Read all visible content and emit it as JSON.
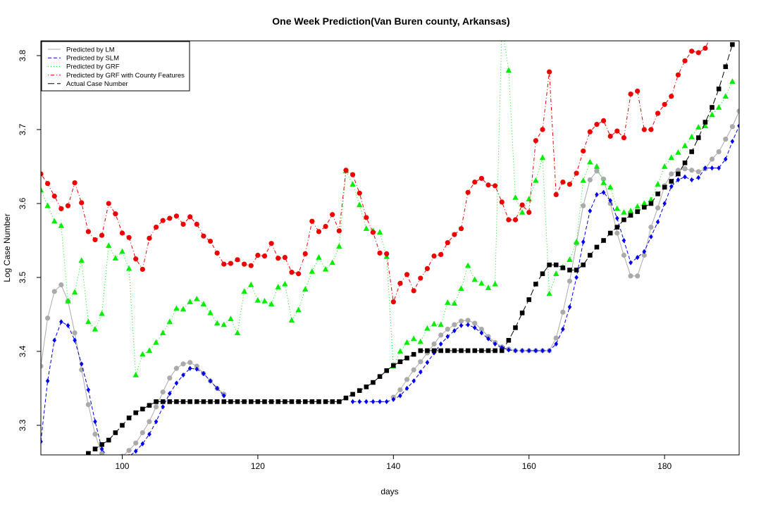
{
  "chart_data": {
    "type": "line",
    "title": "One Week Prediction(Van Buren county, Arkansas)",
    "xlabel": "days",
    "ylabel": "Log Case Number",
    "xlim": [
      88,
      191
    ],
    "ylim": [
      3.26,
      3.82
    ],
    "xticks": [
      100,
      120,
      140,
      160,
      180
    ],
    "yticks": [
      3.3,
      3.4,
      3.5,
      3.6,
      3.7,
      3.8
    ],
    "x_start": 88,
    "grid": false,
    "legend_position": "top-left",
    "series": [
      {
        "name": "Predicted by LM",
        "color": "#aaaaaa",
        "line": "solid",
        "marker": "circle",
        "values": [
          3.38,
          3.445,
          3.481,
          3.49,
          3.468,
          3.425,
          3.375,
          3.328,
          3.288,
          3.262,
          3.255,
          3.253,
          3.258,
          3.266,
          3.276,
          3.29,
          3.305,
          3.325,
          3.345,
          3.364,
          3.377,
          3.383,
          3.385,
          3.38,
          3.37,
          3.36,
          3.35,
          3.342,
          null,
          null,
          null,
          null,
          null,
          null,
          null,
          null,
          null,
          null,
          null,
          null,
          null,
          null,
          null,
          null,
          null,
          null,
          null,
          null,
          null,
          null,
          null,
          null,
          3.338,
          3.348,
          3.362,
          3.375,
          3.386,
          3.398,
          3.41,
          3.422,
          3.43,
          3.436,
          3.441,
          3.442,
          3.438,
          3.43,
          3.42,
          3.412,
          3.406,
          3.403,
          3.401,
          3.401,
          3.401,
          3.401,
          3.401,
          3.401,
          3.418,
          3.453,
          3.495,
          3.546,
          3.597,
          3.632,
          3.644,
          3.633,
          3.6,
          3.56,
          3.53,
          3.502,
          3.502,
          3.53,
          3.568,
          3.594,
          3.624,
          3.64,
          3.645,
          3.647,
          3.645,
          3.643,
          3.647,
          3.66,
          3.67,
          3.687,
          3.704,
          3.725
        ]
      },
      {
        "name": "Predicted by SLM",
        "color": "#0000ee",
        "line": "dashed",
        "marker": "diamond",
        "values": [
          3.278,
          3.36,
          3.415,
          3.44,
          3.435,
          3.415,
          3.383,
          3.348,
          3.305,
          3.268,
          3.255,
          3.253,
          3.255,
          3.258,
          3.265,
          3.275,
          3.288,
          3.305,
          3.325,
          3.343,
          3.357,
          3.368,
          3.377,
          3.376,
          3.37,
          3.36,
          3.35,
          3.34,
          null,
          null,
          null,
          null,
          null,
          null,
          null,
          null,
          null,
          null,
          null,
          null,
          null,
          null,
          null,
          null,
          null,
          null,
          3.332,
          3.332,
          3.332,
          3.332,
          3.332,
          3.332,
          3.335,
          3.34,
          3.35,
          3.36,
          3.372,
          3.385,
          3.398,
          3.41,
          3.42,
          3.428,
          3.435,
          3.436,
          3.432,
          3.425,
          3.417,
          3.41,
          3.405,
          3.402,
          3.401,
          3.401,
          3.401,
          3.401,
          3.401,
          3.401,
          3.41,
          3.43,
          3.46,
          3.5,
          3.548,
          3.59,
          3.612,
          3.615,
          3.604,
          3.58,
          3.55,
          3.52,
          3.527,
          3.535,
          3.555,
          3.575,
          3.6,
          3.623,
          3.632,
          3.636,
          3.632,
          3.635,
          3.648,
          3.648,
          3.648,
          3.66,
          3.684,
          3.705
        ]
      },
      {
        "name": "Predicted by GRF",
        "color": "#00ee00",
        "line": "dotted",
        "marker": "triangle",
        "values": [
          3.618,
          3.597,
          3.576,
          3.57,
          3.468,
          3.48,
          3.523,
          3.44,
          3.43,
          3.451,
          3.543,
          3.526,
          3.535,
          3.512,
          3.368,
          3.396,
          3.401,
          3.412,
          3.425,
          3.44,
          3.458,
          3.457,
          3.467,
          3.471,
          3.464,
          3.452,
          3.438,
          3.436,
          3.444,
          3.425,
          3.481,
          3.49,
          3.469,
          3.468,
          3.464,
          3.487,
          3.491,
          3.442,
          3.456,
          3.484,
          3.508,
          3.527,
          3.511,
          3.52,
          3.542,
          3.644,
          3.626,
          3.598,
          3.566,
          3.563,
          3.561,
          3.528,
          3.38,
          3.4,
          3.412,
          3.417,
          3.413,
          3.431,
          3.437,
          3.436,
          3.466,
          3.465,
          3.485,
          3.516,
          3.497,
          3.492,
          3.486,
          3.491,
          3.84,
          3.78,
          3.608,
          3.588,
          3.606,
          3.631,
          3.662,
          3.478,
          3.505,
          3.514,
          3.524,
          3.548,
          3.631,
          3.656,
          3.65,
          3.628,
          3.622,
          3.593,
          3.588,
          3.59,
          3.596,
          3.6,
          3.605,
          3.626,
          3.65,
          3.662,
          3.669,
          3.678,
          3.69,
          3.703,
          3.705,
          3.72,
          3.73,
          3.745,
          3.765
        ]
      },
      {
        "name": "Predicted by GRF with County Features",
        "color": "#ee0000",
        "line": "dotdash",
        "marker": "circle",
        "values": [
          3.64,
          3.627,
          3.61,
          3.593,
          3.597,
          3.628,
          3.601,
          3.562,
          3.551,
          3.557,
          3.6,
          3.586,
          3.56,
          3.554,
          3.525,
          3.511,
          3.553,
          3.568,
          3.577,
          3.58,
          3.583,
          3.572,
          3.582,
          3.572,
          3.556,
          3.549,
          3.533,
          3.518,
          3.519,
          3.524,
          3.518,
          3.516,
          3.53,
          3.529,
          3.546,
          3.526,
          3.527,
          3.507,
          3.505,
          3.532,
          3.576,
          3.562,
          3.569,
          3.585,
          3.563,
          3.645,
          3.639,
          3.614,
          3.581,
          3.561,
          3.533,
          3.532,
          3.467,
          3.492,
          3.504,
          3.482,
          3.499,
          3.512,
          3.529,
          3.531,
          3.547,
          3.558,
          3.566,
          3.615,
          3.629,
          3.634,
          3.625,
          3.624,
          3.602,
          3.578,
          3.578,
          3.598,
          3.588,
          3.685,
          3.7,
          3.778,
          3.612,
          3.629,
          3.626,
          3.641,
          3.671,
          3.697,
          3.707,
          3.712,
          3.691,
          3.698,
          3.689,
          3.748,
          3.752,
          3.7,
          3.7,
          3.722,
          3.734,
          3.745,
          3.774,
          3.793,
          3.806,
          3.804,
          3.81,
          3.83,
          3.845,
          3.85,
          3.86
        ]
      },
      {
        "name": "Actual Case Number",
        "color": "#000000",
        "line": "longdash",
        "marker": "square",
        "values": [
          3.255,
          3.255,
          3.255,
          3.255,
          3.255,
          3.255,
          3.255,
          3.262,
          3.268,
          3.274,
          3.28,
          3.29,
          3.3,
          3.31,
          3.317,
          3.322,
          3.327,
          3.332,
          3.332,
          3.332,
          3.332,
          3.332,
          3.332,
          3.332,
          3.332,
          3.332,
          3.332,
          3.332,
          3.332,
          3.332,
          3.332,
          3.332,
          3.332,
          3.332,
          3.332,
          3.332,
          3.332,
          3.332,
          3.332,
          3.332,
          3.332,
          3.332,
          3.332,
          3.332,
          3.332,
          3.337,
          3.342,
          3.347,
          3.352,
          3.358,
          3.366,
          3.374,
          3.381,
          3.386,
          3.391,
          3.396,
          3.401,
          3.401,
          3.401,
          3.401,
          3.401,
          3.401,
          3.401,
          3.401,
          3.401,
          3.401,
          3.401,
          3.401,
          3.401,
          3.415,
          3.432,
          3.452,
          3.47,
          3.491,
          3.505,
          3.517,
          3.517,
          3.513,
          3.51,
          3.51,
          3.517,
          3.53,
          3.541,
          3.55,
          3.56,
          3.568,
          3.578,
          3.584,
          3.589,
          3.595,
          3.6,
          3.613,
          3.622,
          3.63,
          3.64,
          3.655,
          3.67,
          3.689,
          3.71,
          3.73,
          3.755,
          3.785,
          3.815
        ]
      }
    ]
  }
}
